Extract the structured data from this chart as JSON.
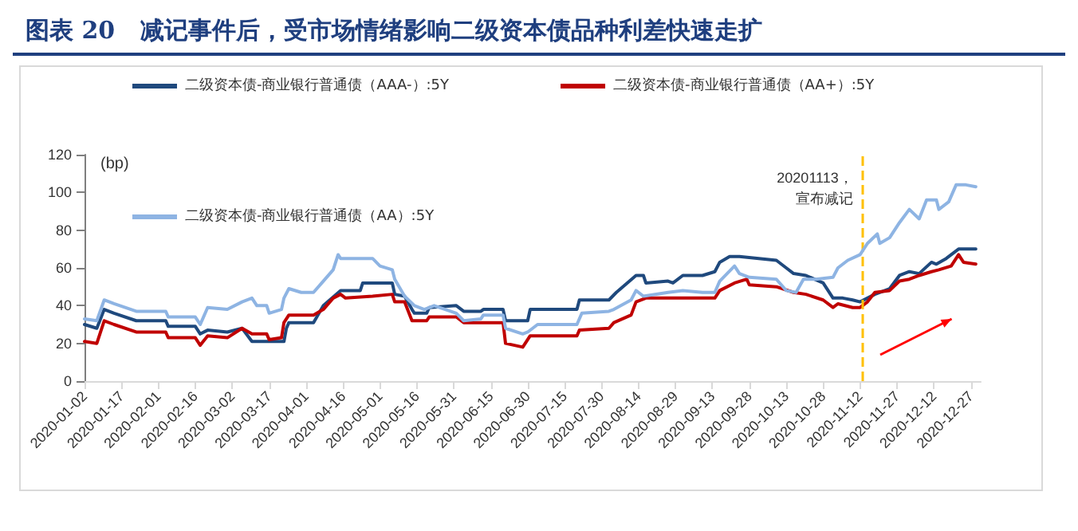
{
  "chart_data": {
    "type": "line",
    "title": "图表 20   减记事件后，受市场情绪影响二级资本债品种利差快速走扩",
    "ylabel": "(bp)",
    "xlim": [
      "2020-01-02",
      "2020-12-31"
    ],
    "xticks": [
      "2020-01-02",
      "2020-01-17",
      "2020-02-01",
      "2020-02-16",
      "2020-03-02",
      "2020-03-17",
      "2020-04-01",
      "2020-04-16",
      "2020-05-01",
      "2020-05-16",
      "2020-05-31",
      "2020-06-15",
      "2020-06-30",
      "2020-07-15",
      "2020-07-30",
      "2020-08-14",
      "2020-08-29",
      "2020-09-13",
      "2020-09-28",
      "2020-10-13",
      "2020-10-28",
      "2020-11-12",
      "2020-11-27",
      "2020-12-12",
      "2020-12-27"
    ],
    "ylim": [
      0,
      120
    ],
    "yticks": [
      0,
      20,
      40,
      60,
      80,
      100,
      120
    ],
    "grid": false,
    "legend": "top",
    "marker": "none",
    "line_style": "solid",
    "series": [
      {
        "name": "二级资本债-商业银行普通债（AAA-）:5Y",
        "color": "#1f497d",
        "x": [
          "2020-01-02",
          "2020-01-07",
          "2020-01-10",
          "2020-01-14",
          "2020-01-23",
          "2020-02-04",
          "2020-02-05",
          "2020-02-16",
          "2020-02-18",
          "2020-02-21",
          "2020-02-29",
          "2020-03-06",
          "2020-03-10",
          "2020-03-23",
          "2020-03-24",
          "2020-03-25",
          "2020-04-04",
          "2020-04-08",
          "2020-04-15",
          "2020-04-23",
          "2020-04-24",
          "2020-05-06",
          "2020-05-07",
          "2020-05-11",
          "2020-05-14",
          "2020-05-15",
          "2020-05-20",
          "2020-05-21",
          "2020-06-01",
          "2020-06-04",
          "2020-06-11",
          "2020-06-12",
          "2020-06-20",
          "2020-06-21",
          "2020-06-30",
          "2020-07-01",
          "2020-07-20",
          "2020-07-21",
          "2020-08-02",
          "2020-08-05",
          "2020-08-13",
          "2020-08-16",
          "2020-08-17",
          "2020-08-26",
          "2020-08-28",
          "2020-09-01",
          "2020-09-09",
          "2020-09-14",
          "2020-09-16",
          "2020-09-20",
          "2020-09-24",
          "2020-10-09",
          "2020-10-13",
          "2020-10-16",
          "2020-10-21",
          "2020-10-28",
          "2020-11-01",
          "2020-11-05",
          "2020-11-09",
          "2020-11-12",
          "2020-11-18",
          "2020-11-24",
          "2020-11-28",
          "2020-12-02",
          "2020-12-06",
          "2020-12-11",
          "2020-12-13",
          "2020-12-17",
          "2020-12-22",
          "2020-12-29"
        ],
        "values": [
          30,
          28,
          38,
          36,
          32,
          32,
          29,
          29,
          25,
          27,
          26,
          28,
          21,
          21,
          28,
          31,
          31,
          40,
          48,
          48,
          52,
          52,
          46,
          45,
          38,
          36,
          36,
          39,
          40,
          37,
          37,
          38,
          38,
          32,
          32,
          38,
          38,
          43,
          43,
          47,
          56,
          56,
          52,
          53,
          52,
          56,
          56,
          58,
          63,
          66,
          66,
          64,
          60,
          57,
          56,
          52,
          44,
          44,
          43,
          42,
          46,
          49,
          56,
          58,
          57,
          63,
          62,
          65,
          70,
          70
        ]
      },
      {
        "name": "二级资本债-商业银行普通债（AA+）:5Y",
        "color": "#c00000",
        "x": [
          "2020-01-02",
          "2020-01-07",
          "2020-01-10",
          "2020-01-14",
          "2020-01-23",
          "2020-02-04",
          "2020-02-05",
          "2020-02-16",
          "2020-02-18",
          "2020-02-21",
          "2020-02-29",
          "2020-03-06",
          "2020-03-10",
          "2020-03-16",
          "2020-03-17",
          "2020-03-22",
          "2020-03-23",
          "2020-03-25",
          "2020-04-04",
          "2020-04-08",
          "2020-04-12",
          "2020-04-15",
          "2020-04-17",
          "2020-04-28",
          "2020-05-06",
          "2020-05-07",
          "2020-05-11",
          "2020-05-14",
          "2020-05-20",
          "2020-05-21",
          "2020-06-01",
          "2020-06-04",
          "2020-06-20",
          "2020-06-21",
          "2020-06-28",
          "2020-07-01",
          "2020-07-20",
          "2020-07-21",
          "2020-08-02",
          "2020-08-04",
          "2020-08-11",
          "2020-08-13",
          "2020-08-17",
          "2020-08-26",
          "2020-09-09",
          "2020-09-14",
          "2020-09-16",
          "2020-09-22",
          "2020-09-27",
          "2020-09-28",
          "2020-10-09",
          "2020-10-16",
          "2020-10-21",
          "2020-10-28",
          "2020-11-01",
          "2020-11-03",
          "2020-11-09",
          "2020-11-12",
          "2020-11-15",
          "2020-11-18",
          "2020-11-24",
          "2020-11-28",
          "2020-12-02",
          "2020-12-06",
          "2020-12-11",
          "2020-12-14",
          "2020-12-19",
          "2020-12-22",
          "2020-12-24",
          "2020-12-29"
        ],
        "values": [
          21,
          20,
          32,
          30,
          26,
          26,
          23,
          23,
          19,
          24,
          23,
          28,
          25,
          25,
          22,
          23,
          31,
          35,
          35,
          38,
          44,
          46,
          44,
          45,
          46,
          42,
          42,
          32,
          32,
          34,
          34,
          31,
          31,
          20,
          18,
          24,
          24,
          27,
          28,
          31,
          35,
          42,
          44,
          44,
          44,
          44,
          48,
          52,
          54,
          51,
          50,
          47,
          46,
          43,
          39,
          41,
          39,
          39,
          42,
          47,
          48,
          53,
          54,
          56,
          58,
          59,
          61,
          67,
          63,
          62
        ]
      },
      {
        "name": "二级资本债-商业银行普通债（AA）:5Y",
        "color": "#8eb4e3",
        "x": [
          "2020-01-02",
          "2020-01-07",
          "2020-01-10",
          "2020-01-14",
          "2020-01-23",
          "2020-02-04",
          "2020-02-05",
          "2020-02-16",
          "2020-02-18",
          "2020-02-21",
          "2020-02-29",
          "2020-03-06",
          "2020-03-10",
          "2020-03-12",
          "2020-03-16",
          "2020-03-17",
          "2020-03-22",
          "2020-03-23",
          "2020-03-25",
          "2020-03-30",
          "2020-04-04",
          "2020-04-08",
          "2020-04-12",
          "2020-04-14",
          "2020-04-15",
          "2020-04-28",
          "2020-05-01",
          "2020-05-06",
          "2020-05-07",
          "2020-05-11",
          "2020-05-15",
          "2020-05-19",
          "2020-05-23",
          "2020-06-01",
          "2020-06-04",
          "2020-06-11",
          "2020-06-12",
          "2020-06-20",
          "2020-06-21",
          "2020-06-28",
          "2020-06-30",
          "2020-07-04",
          "2020-07-20",
          "2020-07-22",
          "2020-08-02",
          "2020-08-04",
          "2020-08-11",
          "2020-08-13",
          "2020-08-16",
          "2020-08-26",
          "2020-09-01",
          "2020-09-09",
          "2020-09-14",
          "2020-09-16",
          "2020-09-22",
          "2020-09-24",
          "2020-09-28",
          "2020-10-09",
          "2020-10-13",
          "2020-10-17",
          "2020-10-20",
          "2020-10-25",
          "2020-11-01",
          "2020-11-03",
          "2020-11-07",
          "2020-11-12",
          "2020-11-15",
          "2020-11-19",
          "2020-11-20",
          "2020-11-24",
          "2020-11-28",
          "2020-12-02",
          "2020-12-06",
          "2020-12-09",
          "2020-12-13",
          "2020-12-14",
          "2020-12-18",
          "2020-12-21",
          "2020-12-25",
          "2020-12-29"
        ],
        "values": [
          33,
          32,
          43,
          41,
          37,
          37,
          34,
          34,
          30,
          39,
          38,
          42,
          44,
          40,
          40,
          36,
          38,
          44,
          49,
          47,
          47,
          53,
          59,
          67,
          65,
          65,
          61,
          59,
          54,
          45,
          40,
          38,
          40,
          36,
          32,
          33,
          35,
          35,
          28,
          25,
          26,
          30,
          30,
          36,
          37,
          38,
          43,
          48,
          45,
          47,
          48,
          47,
          47,
          53,
          61,
          57,
          55,
          54,
          48,
          47,
          54,
          54,
          55,
          60,
          64,
          67,
          73,
          78,
          73,
          76,
          84,
          91,
          86,
          96,
          96,
          91,
          95,
          104,
          104,
          103
        ]
      }
    ],
    "ref_lines": [
      {
        "axis": "x",
        "value": "2020-11-13",
        "label": "20201113，宣布减记",
        "color": "#ffc000",
        "line_style": "dashed"
      }
    ]
  }
}
